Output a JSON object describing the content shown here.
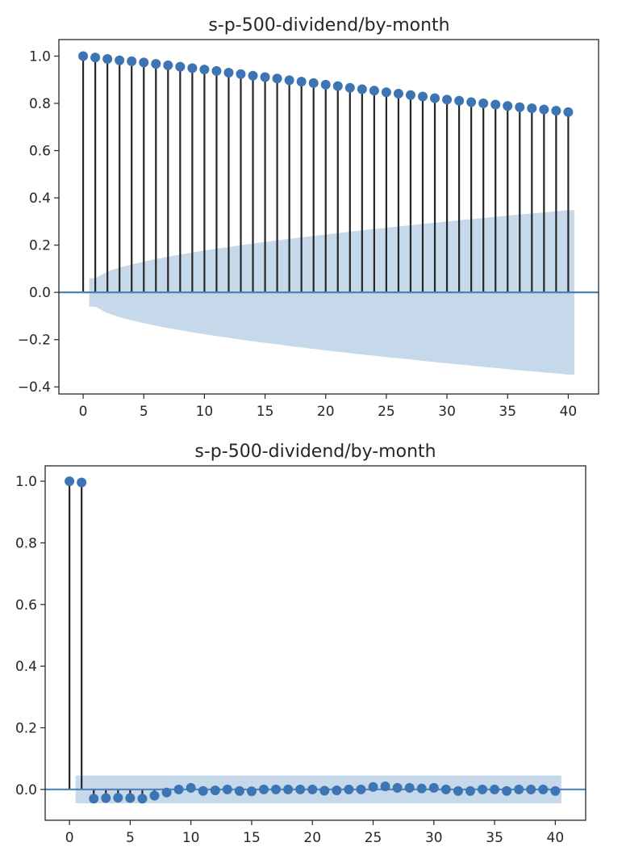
{
  "chart_data": [
    {
      "type": "stem",
      "title": "s-p-500-dividend/by-month",
      "xlabel": "",
      "ylabel": "",
      "xlim": [
        -2,
        42.5
      ],
      "ylim": [
        -0.43,
        1.07
      ],
      "xticks": [
        0,
        5,
        10,
        15,
        20,
        25,
        30,
        35,
        40
      ],
      "xtick_labels": [
        "0",
        "5",
        "10",
        "15",
        "20",
        "25",
        "30",
        "35",
        "40"
      ],
      "yticks": [
        1.0,
        0.8,
        0.6,
        0.4,
        0.2,
        0.0,
        -0.2,
        -0.4
      ],
      "ytick_labels": [
        "1.0",
        "0.8",
        "0.6",
        "0.4",
        "0.2",
        "0.0",
        "−0.2",
        "−0.4"
      ],
      "lags": [
        0,
        1,
        2,
        3,
        4,
        5,
        6,
        7,
        8,
        9,
        10,
        11,
        12,
        13,
        14,
        15,
        16,
        17,
        18,
        19,
        20,
        21,
        22,
        23,
        24,
        25,
        26,
        27,
        28,
        29,
        30,
        31,
        32,
        33,
        34,
        35,
        36,
        37,
        38,
        39,
        40
      ],
      "values": [
        1.0,
        0.994,
        0.988,
        0.982,
        0.978,
        0.973,
        0.967,
        0.961,
        0.955,
        0.949,
        0.943,
        0.937,
        0.93,
        0.924,
        0.917,
        0.911,
        0.905,
        0.898,
        0.892,
        0.886,
        0.879,
        0.873,
        0.866,
        0.86,
        0.854,
        0.847,
        0.841,
        0.835,
        0.829,
        0.822,
        0.816,
        0.811,
        0.805,
        0.8,
        0.795,
        0.789,
        0.784,
        0.779,
        0.774,
        0.769,
        0.763
      ],
      "confint_upper": [
        null,
        0.06,
        0.088,
        0.105,
        0.118,
        0.13,
        0.141,
        0.151,
        0.16,
        0.169,
        0.177,
        0.185,
        0.192,
        0.2,
        0.207,
        0.214,
        0.22,
        0.227,
        0.233,
        0.239,
        0.245,
        0.251,
        0.257,
        0.263,
        0.268,
        0.274,
        0.279,
        0.284,
        0.29,
        0.295,
        0.3,
        0.305,
        0.31,
        0.315,
        0.32,
        0.325,
        0.33,
        0.334,
        0.339,
        0.343,
        0.348
      ],
      "confint_lower": [
        null,
        -0.06,
        -0.088,
        -0.105,
        -0.118,
        -0.13,
        -0.141,
        -0.151,
        -0.16,
        -0.169,
        -0.177,
        -0.185,
        -0.192,
        -0.2,
        -0.207,
        -0.214,
        -0.22,
        -0.227,
        -0.233,
        -0.239,
        -0.245,
        -0.251,
        -0.257,
        -0.263,
        -0.268,
        -0.274,
        -0.279,
        -0.284,
        -0.29,
        -0.295,
        -0.3,
        -0.305,
        -0.31,
        -0.315,
        -0.32,
        -0.325,
        -0.33,
        -0.334,
        -0.339,
        -0.343,
        -0.348
      ],
      "grid": false,
      "colors": {
        "marker": "#3d74b4",
        "stem": "#262626",
        "baseline": "#4f83b7",
        "band": "#c6d9ea",
        "axes": "#262626"
      }
    },
    {
      "type": "stem",
      "title": "s-p-500-dividend/by-month",
      "xlabel": "",
      "ylabel": "",
      "xlim": [
        -2,
        42.5
      ],
      "ylim": [
        -0.1,
        1.05
      ],
      "xticks": [
        0,
        5,
        10,
        15,
        20,
        25,
        30,
        35,
        40
      ],
      "xtick_labels": [
        "0",
        "5",
        "10",
        "15",
        "20",
        "25",
        "30",
        "35",
        "40"
      ],
      "yticks": [
        1.0,
        0.8,
        0.6,
        0.4,
        0.2,
        0.0
      ],
      "ytick_labels": [
        "1.0",
        "0.8",
        "0.6",
        "0.4",
        "0.2",
        "0.0"
      ],
      "lags": [
        0,
        1,
        2,
        3,
        4,
        5,
        6,
        7,
        8,
        9,
        10,
        11,
        12,
        13,
        14,
        15,
        16,
        17,
        18,
        19,
        20,
        21,
        22,
        23,
        24,
        25,
        26,
        27,
        28,
        29,
        30,
        31,
        32,
        33,
        34,
        35,
        36,
        37,
        38,
        39,
        40
      ],
      "values": [
        1.0,
        0.996,
        -0.03,
        -0.028,
        -0.027,
        -0.028,
        -0.03,
        -0.02,
        -0.01,
        0.0,
        0.005,
        -0.005,
        -0.003,
        0.0,
        -0.005,
        -0.006,
        0.0,
        0.0,
        0.0,
        0.0,
        0.0,
        -0.004,
        -0.003,
        0.0,
        0.0,
        0.008,
        0.01,
        0.005,
        0.005,
        0.003,
        0.005,
        0.0,
        -0.005,
        -0.005,
        0.0,
        0.0,
        -0.005,
        0.0,
        0.0,
        0.0,
        -0.005
      ],
      "confint_upper": [
        null,
        0.045,
        0.045,
        0.045,
        0.045,
        0.045,
        0.045,
        0.045,
        0.045,
        0.045,
        0.045,
        0.045,
        0.045,
        0.045,
        0.045,
        0.045,
        0.045,
        0.045,
        0.045,
        0.045,
        0.045,
        0.045,
        0.045,
        0.045,
        0.045,
        0.045,
        0.045,
        0.045,
        0.045,
        0.045,
        0.045,
        0.045,
        0.045,
        0.045,
        0.045,
        0.045,
        0.045,
        0.045,
        0.045,
        0.045,
        0.045
      ],
      "confint_lower": [
        null,
        -0.045,
        -0.045,
        -0.045,
        -0.045,
        -0.045,
        -0.045,
        -0.045,
        -0.045,
        -0.045,
        -0.045,
        -0.045,
        -0.045,
        -0.045,
        -0.045,
        -0.045,
        -0.045,
        -0.045,
        -0.045,
        -0.045,
        -0.045,
        -0.045,
        -0.045,
        -0.045,
        -0.045,
        -0.045,
        -0.045,
        -0.045,
        -0.045,
        -0.045,
        -0.045,
        -0.045,
        -0.045,
        -0.045,
        -0.045,
        -0.045,
        -0.045,
        -0.045,
        -0.045,
        -0.045,
        -0.045
      ],
      "grid": false,
      "colors": {
        "marker": "#3d74b4",
        "stem": "#262626",
        "baseline": "#4f83b7",
        "band": "#c6d9ea",
        "axes": "#262626"
      }
    }
  ]
}
